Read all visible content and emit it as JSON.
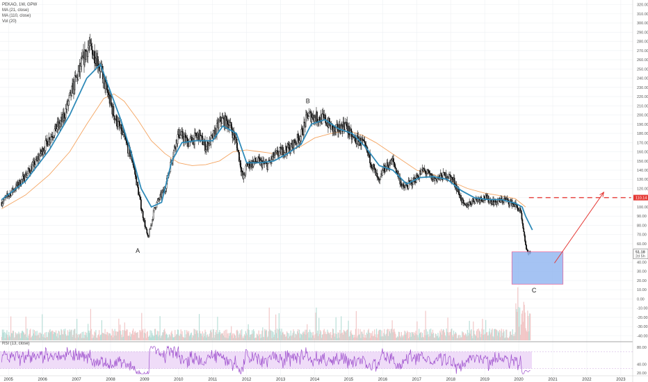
{
  "header": {
    "symbol_line": "PEKAO, 1W, GPW",
    "indicators": [
      "MA (21, close)",
      "MA (110, close)",
      "Vol (20)"
    ]
  },
  "rsi_panel": {
    "label": "RSI (13, close)",
    "ticks": [
      "80.00",
      "40.00",
      "20.00"
    ]
  },
  "colors": {
    "ma21": "#2e8ab8",
    "ma110": "#f4a460",
    "resistance": "#e53935",
    "target_box_fill": "#8fb4f0",
    "target_box_border": "#e36aa0",
    "rsi_line": "#9c4dcc",
    "rsi_band": "#efdcf8",
    "price_badge": "#e53935",
    "candles": "#111111"
  },
  "chart_data": {
    "type": "candlestick",
    "symbol": "PEKAO",
    "interval": "1W",
    "exchange": "GPW",
    "x_axis_ticks": [
      "2005",
      "2006",
      "2007",
      "2008",
      "2009",
      "2010",
      "2011",
      "2012",
      "2013",
      "2014",
      "2015",
      "2016",
      "2017",
      "2018",
      "2019",
      "2020",
      "2021",
      "2022",
      "2023"
    ],
    "y_axis_ticks": [
      "320.00",
      "310.00",
      "300.00",
      "290.00",
      "280.00",
      "270.00",
      "260.00",
      "250.00",
      "240.00",
      "230.00",
      "220.00",
      "210.00",
      "200.00",
      "190.00",
      "180.00",
      "170.00",
      "160.00",
      "150.00",
      "140.00",
      "130.00",
      "120.00",
      "110.00",
      "100.00",
      "90.00",
      "80.00",
      "70.00",
      "60.00",
      "50.00",
      "40.00",
      "30.00",
      "20.00",
      "10.00",
      "0.00",
      "-10.00",
      "-20.00",
      "-30.00",
      "-40.00"
    ],
    "ylim": [
      -45,
      325
    ],
    "price_path": [
      [
        2004.8,
        105
      ],
      [
        2005.3,
        125
      ],
      [
        2005.8,
        148
      ],
      [
        2006.2,
        175
      ],
      [
        2006.6,
        195
      ],
      [
        2006.9,
        230
      ],
      [
        2007.1,
        250
      ],
      [
        2007.35,
        275
      ],
      [
        2007.6,
        262
      ],
      [
        2007.85,
        232
      ],
      [
        2008.1,
        200
      ],
      [
        2008.4,
        175
      ],
      [
        2008.65,
        150
      ],
      [
        2008.9,
        100
      ],
      [
        2009.1,
        65
      ],
      [
        2009.3,
        100
      ],
      [
        2009.6,
        120
      ],
      [
        2009.85,
        160
      ],
      [
        2010.0,
        180
      ],
      [
        2010.3,
        170
      ],
      [
        2010.6,
        178
      ],
      [
        2010.8,
        165
      ],
      [
        2011.0,
        175
      ],
      [
        2011.25,
        195
      ],
      [
        2011.5,
        190
      ],
      [
        2011.7,
        170
      ],
      [
        2011.9,
        130
      ],
      [
        2012.0,
        145
      ],
      [
        2012.3,
        150
      ],
      [
        2012.6,
        145
      ],
      [
        2012.8,
        155
      ],
      [
        2013.0,
        160
      ],
      [
        2013.3,
        165
      ],
      [
        2013.6,
        178
      ],
      [
        2013.8,
        200
      ],
      [
        2014.0,
        198
      ],
      [
        2014.3,
        195
      ],
      [
        2014.6,
        182
      ],
      [
        2014.9,
        190
      ],
      [
        2015.1,
        175
      ],
      [
        2015.4,
        170
      ],
      [
        2015.6,
        155
      ],
      [
        2015.9,
        125
      ],
      [
        2016.0,
        140
      ],
      [
        2016.3,
        150
      ],
      [
        2016.6,
        120
      ],
      [
        2016.9,
        128
      ],
      [
        2017.2,
        140
      ],
      [
        2017.5,
        130
      ],
      [
        2017.9,
        135
      ],
      [
        2018.1,
        128
      ],
      [
        2018.4,
        100
      ],
      [
        2018.7,
        108
      ],
      [
        2019.0,
        110
      ],
      [
        2019.3,
        105
      ],
      [
        2019.6,
        108
      ],
      [
        2019.9,
        102
      ],
      [
        2020.05,
        95
      ],
      [
        2020.15,
        70
      ],
      [
        2020.25,
        50
      ],
      [
        2020.35,
        51
      ]
    ],
    "series": [
      {
        "name": "MA (21, close)",
        "path": [
          [
            2004.8,
            108
          ],
          [
            2005.5,
            128
          ],
          [
            2006.2,
            162
          ],
          [
            2006.8,
            200
          ],
          [
            2007.3,
            240
          ],
          [
            2007.7,
            255
          ],
          [
            2008.0,
            225
          ],
          [
            2008.3,
            195
          ],
          [
            2008.6,
            160
          ],
          [
            2008.9,
            120
          ],
          [
            2009.2,
            100
          ],
          [
            2009.5,
            105
          ],
          [
            2009.8,
            150
          ],
          [
            2010.1,
            170
          ],
          [
            2010.5,
            172
          ],
          [
            2011.0,
            172
          ],
          [
            2011.3,
            188
          ],
          [
            2011.7,
            180
          ],
          [
            2012.0,
            148
          ],
          [
            2012.4,
            148
          ],
          [
            2012.8,
            150
          ],
          [
            2013.2,
            158
          ],
          [
            2013.6,
            168
          ],
          [
            2013.9,
            190
          ],
          [
            2014.3,
            195
          ],
          [
            2014.7,
            185
          ],
          [
            2015.1,
            180
          ],
          [
            2015.5,
            165
          ],
          [
            2015.9,
            145
          ],
          [
            2016.3,
            140
          ],
          [
            2016.7,
            125
          ],
          [
            2017.1,
            132
          ],
          [
            2017.5,
            133
          ],
          [
            2017.9,
            130
          ],
          [
            2018.3,
            118
          ],
          [
            2018.7,
            110
          ],
          [
            2019.1,
            108
          ],
          [
            2019.5,
            108
          ],
          [
            2019.9,
            104
          ],
          [
            2020.1,
            100
          ],
          [
            2020.2,
            90
          ],
          [
            2020.4,
            75
          ]
        ]
      },
      {
        "name": "MA (110, close)",
        "path": [
          [
            2004.8,
            98
          ],
          [
            2005.5,
            113
          ],
          [
            2006.2,
            135
          ],
          [
            2006.8,
            160
          ],
          [
            2007.3,
            190
          ],
          [
            2007.8,
            218
          ],
          [
            2008.1,
            223
          ],
          [
            2008.4,
            215
          ],
          [
            2008.8,
            195
          ],
          [
            2009.2,
            172
          ],
          [
            2009.6,
            158
          ],
          [
            2010.0,
            148
          ],
          [
            2010.4,
            145
          ],
          [
            2010.8,
            146
          ],
          [
            2011.2,
            150
          ],
          [
            2011.6,
            160
          ],
          [
            2012.0,
            162
          ],
          [
            2012.4,
            160
          ],
          [
            2012.8,
            158
          ],
          [
            2013.2,
            160
          ],
          [
            2013.6,
            166
          ],
          [
            2014.0,
            175
          ],
          [
            2014.5,
            180
          ],
          [
            2015.0,
            183
          ],
          [
            2015.4,
            178
          ],
          [
            2015.8,
            170
          ],
          [
            2016.2,
            160
          ],
          [
            2016.6,
            150
          ],
          [
            2017.0,
            140
          ],
          [
            2017.5,
            135
          ],
          [
            2018.0,
            128
          ],
          [
            2018.5,
            120
          ],
          [
            2019.0,
            115
          ],
          [
            2019.5,
            112
          ],
          [
            2019.9,
            109
          ],
          [
            2020.2,
            100
          ]
        ]
      }
    ],
    "annotations": [
      {
        "label": "A",
        "x": 2008.8,
        "y": 50
      },
      {
        "label": "B",
        "x": 2013.8,
        "y": 213
      },
      {
        "label": "C",
        "x": 2020.45,
        "y": 7
      }
    ],
    "resistance_line": {
      "price": 110.14,
      "label": "110.14",
      "x_start": 2020.3,
      "x_end": 2023.3
    },
    "target_box": {
      "x_start": 2019.8,
      "x_end": 2021.3,
      "y_low": 16,
      "y_high": 51.18
    },
    "arrow": {
      "from": [
        2021.05,
        39
      ],
      "to": [
        2022.5,
        116
      ]
    },
    "current_price": {
      "label": "51.18",
      "value": 51.18,
      "countdown": "2d 5h"
    },
    "rsi_ylim": [
      15,
      85
    ]
  }
}
